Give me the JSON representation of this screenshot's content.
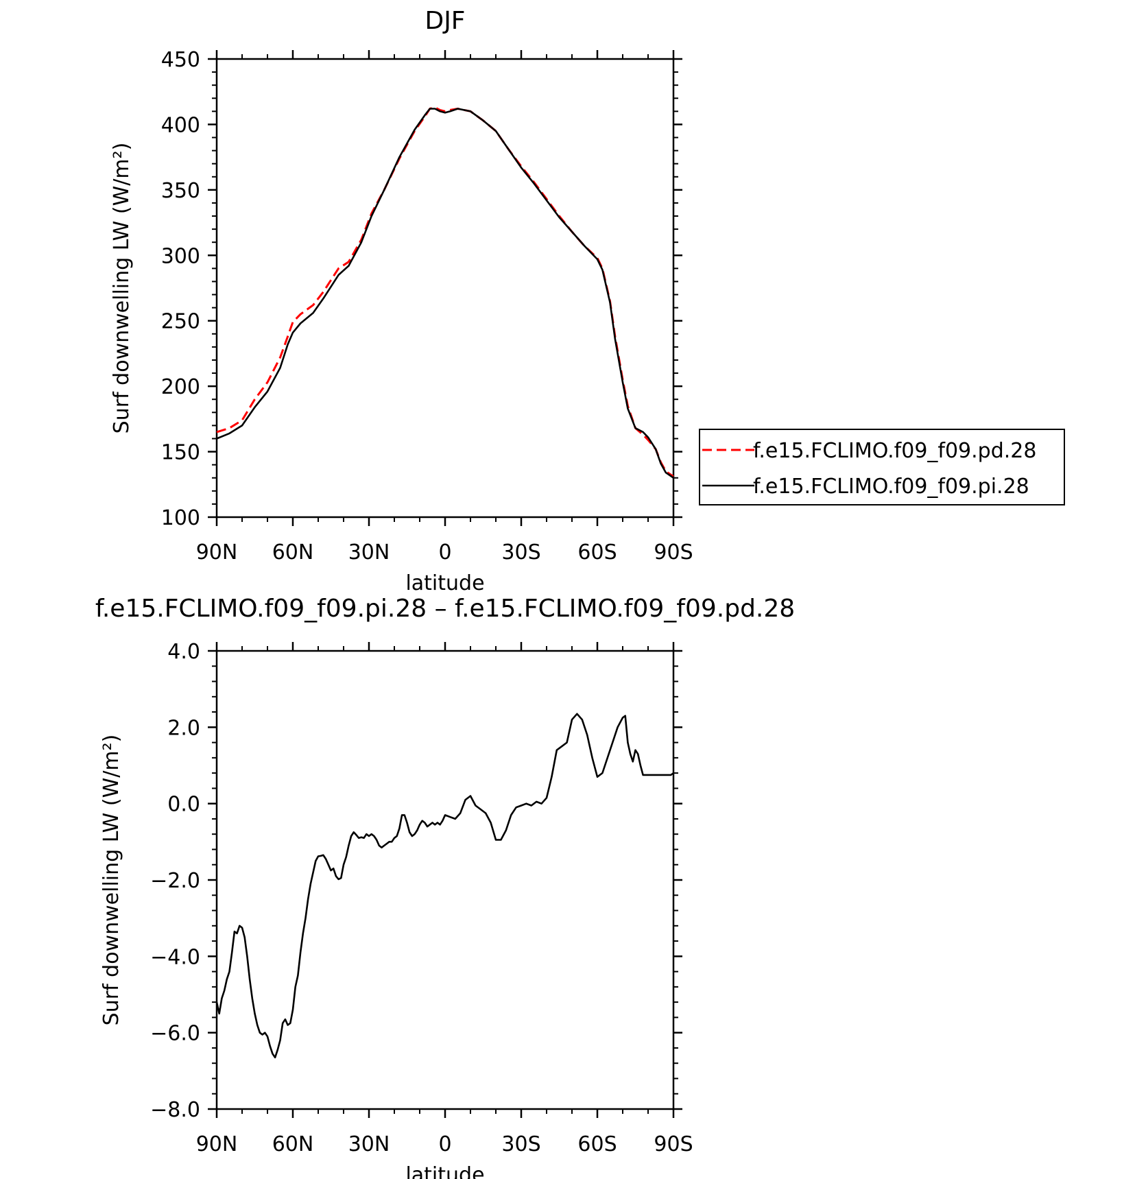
{
  "chart_data": [
    {
      "type": "line",
      "title": "DJF",
      "xlabel": "latitude",
      "ylabel": "Surf downwelling LW (W/m²)",
      "xlim": [
        90,
        -90
      ],
      "ylim": [
        100,
        450
      ],
      "x_tick_labels": [
        "90N",
        "60N",
        "30N",
        "0",
        "30S",
        "60S",
        "90S"
      ],
      "x_ticks": [
        90,
        60,
        30,
        0,
        -30,
        -60,
        -90
      ],
      "y_tick_labels": [
        "100",
        "150",
        "200",
        "250",
        "300",
        "350",
        "400",
        "450"
      ],
      "y_ticks": [
        100,
        150,
        200,
        250,
        300,
        350,
        400,
        450
      ],
      "grid": false,
      "legend_position": "right",
      "series": [
        {
          "name": "f.e15.FCLIMO.f09_f09.pd.28",
          "color": "#ff0000",
          "dash": "dashed",
          "x": [
            90,
            85,
            80,
            75,
            70,
            65,
            62,
            60,
            57,
            52,
            48,
            42,
            38,
            33,
            29,
            24,
            18,
            12,
            8,
            6,
            4,
            2,
            0,
            -2,
            -5,
            -10,
            -15,
            -20,
            -25,
            -30,
            -35,
            -40,
            -45,
            -50,
            -55,
            -60,
            -62,
            -65,
            -67,
            -70,
            -72,
            -75,
            -78,
            -80,
            -83,
            -85,
            -87,
            -90
          ],
          "values": [
            165,
            168,
            174,
            190,
            203,
            222,
            238,
            249,
            255,
            262,
            272,
            290,
            295,
            312,
            332,
            350,
            374,
            395,
            406,
            412,
            413,
            411,
            410,
            411,
            412,
            410,
            403,
            395,
            381,
            368,
            356,
            343,
            330,
            318,
            307,
            298,
            290,
            265,
            238,
            205,
            185,
            168,
            163,
            159,
            152,
            142,
            135,
            131
          ]
        },
        {
          "name": "f.e15.FCLIMO.f09_f09.pi.28",
          "color": "#000000",
          "dash": "solid",
          "x": [
            90,
            85,
            80,
            75,
            70,
            65,
            62,
            60,
            57,
            52,
            48,
            42,
            38,
            33,
            29,
            24,
            18,
            12,
            8,
            6,
            4,
            2,
            0,
            -2,
            -5,
            -10,
            -15,
            -20,
            -25,
            -30,
            -35,
            -40,
            -45,
            -50,
            -55,
            -60,
            -62,
            -65,
            -67,
            -70,
            -72,
            -75,
            -78,
            -80,
            -83,
            -85,
            -87,
            -90
          ],
          "values": [
            160,
            164,
            170,
            184,
            196,
            214,
            232,
            241,
            248,
            256,
            267,
            285,
            292,
            310,
            330,
            350,
            375,
            396,
            407,
            412,
            412,
            410,
            409,
            410,
            412,
            410,
            403,
            395,
            381,
            367,
            355,
            342,
            329,
            318,
            307,
            297,
            289,
            264,
            236,
            203,
            183,
            168,
            165,
            161,
            152,
            141,
            134,
            130
          ]
        }
      ]
    },
    {
      "type": "line",
      "title": "f.e15.FCLIMO.f09_f09.pi.28 – f.e15.FCLIMO.f09_f09.pd.28",
      "xlabel": "latitude",
      "ylabel": "Surf downwelling LW (W/m²)",
      "xlim": [
        90,
        -90
      ],
      "ylim": [
        -8.0,
        4.0
      ],
      "x_tick_labels": [
        "90N",
        "60N",
        "30N",
        "0",
        "30S",
        "60S",
        "90S"
      ],
      "x_ticks": [
        90,
        60,
        30,
        0,
        -30,
        -60,
        -90
      ],
      "y_tick_labels": [
        "−8.0",
        "−6.0",
        "−4.0",
        "−2.0",
        "0.0",
        "2.0",
        "4.0"
      ],
      "y_ticks": [
        -8,
        -6,
        -4,
        -2,
        0,
        2,
        4
      ],
      "grid": false,
      "series": [
        {
          "color": "#000000",
          "dash": "solid",
          "x": [
            90,
            89,
            88,
            87,
            86,
            85,
            84,
            83,
            82,
            81,
            80,
            79,
            78,
            77,
            76,
            75,
            74,
            73,
            72,
            71,
            70,
            69,
            68,
            67,
            66,
            65,
            64,
            63,
            62,
            61,
            60,
            59,
            58,
            57,
            56,
            55,
            54,
            53,
            52,
            51,
            50,
            49,
            48,
            47,
            46,
            45,
            44,
            43,
            42,
            41,
            40,
            39,
            38,
            37,
            36,
            35,
            34,
            33,
            32,
            31,
            30,
            29,
            28,
            27,
            26,
            25,
            24,
            23,
            22,
            21,
            20,
            19,
            18,
            17,
            16,
            15,
            14,
            13,
            12,
            11,
            10,
            9,
            8,
            7,
            6,
            5,
            4,
            3,
            2,
            1,
            0,
            -2,
            -4,
            -6,
            -8,
            -10,
            -12,
            -14,
            -16,
            -18,
            -20,
            -22,
            -24,
            -26,
            -28,
            -30,
            -32,
            -34,
            -36,
            -38,
            -40,
            -42,
            -44,
            -46,
            -48,
            -50,
            -52,
            -54,
            -56,
            -58,
            -60,
            -62,
            -64,
            -66,
            -68,
            -70,
            -71,
            -72,
            -73,
            -74,
            -75,
            -76,
            -77,
            -78,
            -79,
            -80,
            -81,
            -82,
            -83,
            -84,
            -85,
            -86,
            -87,
            -88,
            -89,
            -90
          ],
          "values": [
            -5.2,
            -5.5,
            -5.1,
            -4.9,
            -4.6,
            -4.4,
            -3.9,
            -3.35,
            -3.4,
            -3.2,
            -3.25,
            -3.5,
            -4.0,
            -4.6,
            -5.1,
            -5.5,
            -5.8,
            -6.0,
            -6.05,
            -6.0,
            -6.1,
            -6.35,
            -6.55,
            -6.65,
            -6.45,
            -6.2,
            -5.75,
            -5.65,
            -5.8,
            -5.75,
            -5.4,
            -4.8,
            -4.5,
            -3.9,
            -3.4,
            -3.0,
            -2.5,
            -2.1,
            -1.8,
            -1.5,
            -1.38,
            -1.37,
            -1.35,
            -1.45,
            -1.6,
            -1.75,
            -1.7,
            -1.9,
            -1.98,
            -1.95,
            -1.6,
            -1.4,
            -1.1,
            -0.85,
            -0.75,
            -0.82,
            -0.9,
            -0.88,
            -0.9,
            -0.8,
            -0.85,
            -0.8,
            -0.85,
            -0.95,
            -1.1,
            -1.15,
            -1.1,
            -1.05,
            -1.0,
            -1.0,
            -0.9,
            -0.85,
            -0.65,
            -0.3,
            -0.3,
            -0.5,
            -0.75,
            -0.85,
            -0.8,
            -0.7,
            -0.55,
            -0.45,
            -0.5,
            -0.6,
            -0.55,
            -0.5,
            -0.55,
            -0.5,
            -0.55,
            -0.45,
            -0.3,
            -0.35,
            -0.4,
            -0.25,
            0.1,
            0.2,
            -0.05,
            -0.15,
            -0.25,
            -0.5,
            -0.95,
            -0.95,
            -0.7,
            -0.3,
            -0.1,
            -0.05,
            0.0,
            -0.05,
            0.05,
            0.0,
            0.15,
            0.7,
            1.4,
            1.5,
            1.6,
            2.2,
            2.35,
            2.2,
            1.8,
            1.2,
            0.7,
            0.8,
            1.2,
            1.6,
            2.0,
            2.25,
            2.3,
            1.6,
            1.3,
            1.1,
            1.4,
            1.3,
            1.0,
            0.75,
            0.75,
            0.75,
            0.75,
            0.75,
            0.75,
            0.75,
            0.75,
            0.75,
            0.75,
            0.75,
            0.75,
            0.8
          ]
        }
      ]
    }
  ]
}
